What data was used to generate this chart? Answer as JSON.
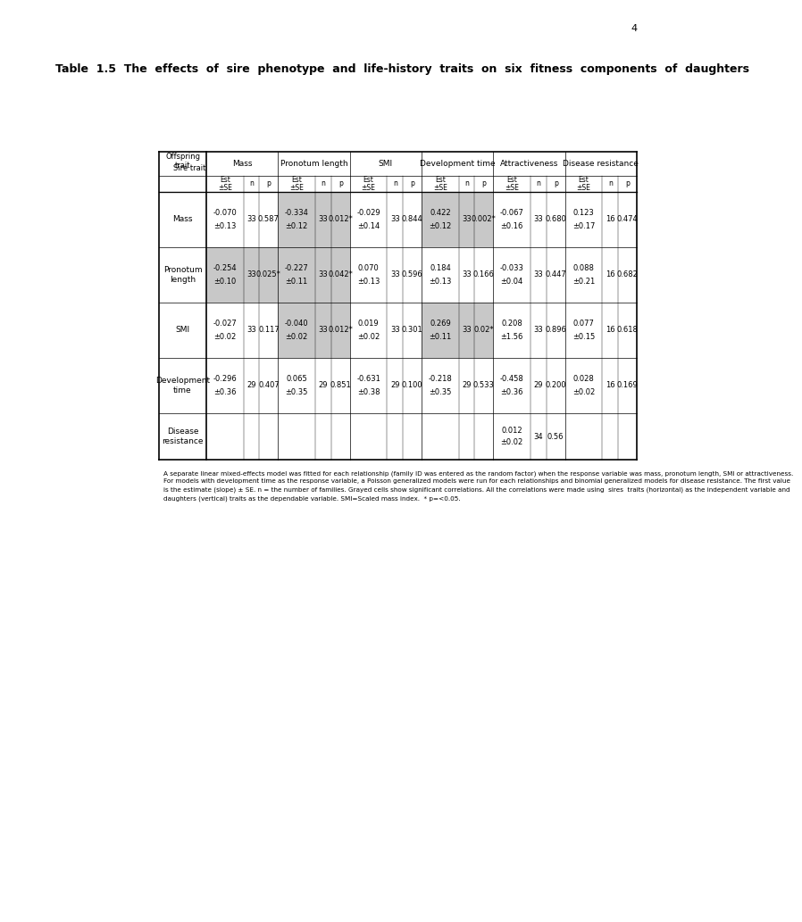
{
  "title": "Table  1.5  The  effects  of  sire  phenotype  and  life-history  traits  on  six  fitness  components  of  daughters",
  "page_number": "4",
  "group_names": [
    "Mass",
    "Pronotum length",
    "SMI",
    "Development time",
    "Attractiveness",
    "Disease resistance"
  ],
  "row_labels": [
    "Mass",
    "Pronotum\nlength",
    "SMI",
    "Development\ntime",
    "Disease\nresistance"
  ],
  "sub_headers": [
    "Est\n±SE",
    "n",
    "p"
  ],
  "rows_data": [
    [
      [
        "-0.070",
        "±0.13",
        "33",
        "0.587"
      ],
      [
        "-0.334",
        "±0.12",
        "33",
        "0.012*"
      ],
      [
        "-0.029",
        "±0.14",
        "33",
        "0.844"
      ],
      [
        "0.422",
        "±0.12",
        "33",
        "0.002*"
      ],
      [
        "-0.067",
        "±0.16",
        "33",
        "0.680"
      ],
      [
        "0.123",
        "±0.17",
        "16",
        "0.474"
      ]
    ],
    [
      [
        "-0.254",
        "±0.10",
        "33",
        "0.025*"
      ],
      [
        "-0.227",
        "±0.11",
        "33",
        "0.042*"
      ],
      [
        "0.070",
        "±0.13",
        "33",
        "0.596"
      ],
      [
        "0.184",
        "±0.13",
        "33",
        "0.166"
      ],
      [
        "-0.033",
        "±0.04",
        "33",
        "0.447"
      ],
      [
        "0.088",
        "±0.21",
        "16",
        "0.682"
      ]
    ],
    [
      [
        "-0.027",
        "±0.02",
        "33",
        "0.117"
      ],
      [
        "-0.040",
        "±0.02",
        "33",
        "0.012*"
      ],
      [
        "0.019",
        "±0.02",
        "33",
        "0.301"
      ],
      [
        "0.269",
        "±0.11",
        "33",
        "0.02*"
      ],
      [
        "0.208",
        "±1.56",
        "33",
        "0.896"
      ],
      [
        "0.077",
        "±0.15",
        "16",
        "0.618"
      ]
    ],
    [
      [
        "-0.296",
        "±0.36",
        "29",
        "0.407"
      ],
      [
        "0.065",
        "±0.35",
        "29",
        "0.851"
      ],
      [
        "-0.631",
        "±0.38",
        "29",
        "0.100"
      ],
      [
        "-0.218",
        "±0.35",
        "29",
        "0.533"
      ],
      [
        "-0.458",
        "±0.36",
        "29",
        "0.200"
      ],
      [
        "0.028",
        "±0.02",
        "16",
        "0.169"
      ]
    ],
    [
      [
        "",
        "",
        "",
        ""
      ],
      [
        "",
        "",
        "",
        ""
      ],
      [
        "",
        "",
        "",
        ""
      ],
      [
        "",
        "",
        "",
        ""
      ],
      [
        "0.012",
        "±0.02",
        "34",
        "0.56"
      ],
      [
        "",
        "",
        "",
        ""
      ]
    ]
  ],
  "shaded": [
    [
      false,
      true,
      false,
      true,
      false,
      false
    ],
    [
      true,
      true,
      false,
      false,
      false,
      false
    ],
    [
      false,
      true,
      false,
      true,
      false,
      false
    ],
    [
      false,
      false,
      false,
      false,
      false,
      false
    ],
    [
      false,
      false,
      false,
      false,
      false,
      false
    ]
  ],
  "footnote_lines": [
    "A separate linear mixed-effects model was fitted for each relationship (family ID was entered as the random factor) when the response variable was mass, pronotum length, SMI or attractiveness.",
    "For models with development time as the response variable, a Poisson generalized models were run for each relationships and binomial generalized models for disease resistance. The first value",
    "is the estimate (slope) ± SE. n = the number of families. Grayed cells show significant correlations. All the correlations were made using  sires  traits (horizontal) as the independent variable and",
    "daughters (vertical) traits as the dependable variable. SMI=Scaled mass index.  * p=<0.05."
  ],
  "shaded_color": "#c8c8c8",
  "bg_color": "#ffffff",
  "lw_thick": 1.2,
  "lw_thin": 0.5,
  "title_fontsize": 9.0,
  "header_fontsize": 6.5,
  "cell_fontsize": 6.0,
  "footnote_fontsize": 5.2,
  "page_num_fontsize": 8.0
}
